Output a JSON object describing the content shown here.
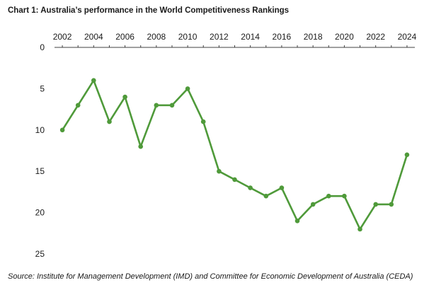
{
  "title": "Chart 1: Australia’s performance in the World Competitiveness Rankings",
  "source": "Source: Institute for Management Development (IMD) and Committee for Economic Development of Australia (CEDA)",
  "colors": {
    "series": "#4f9a3a",
    "axis": "#404040",
    "text": "#1a1a1a"
  },
  "chart_data": {
    "type": "line",
    "title": "Chart 1: Australia’s performance in the World Competitiveness Rankings",
    "xlabel": "",
    "ylabel": "",
    "x_axis_position": "top",
    "y_inverted": true,
    "xlim": [
      2001.5,
      2024.5
    ],
    "ylim": [
      0,
      25
    ],
    "x_ticks": [
      2002,
      2004,
      2006,
      2008,
      2010,
      2012,
      2014,
      2016,
      2018,
      2020,
      2022,
      2024
    ],
    "y_ticks": [
      0,
      5,
      10,
      15,
      20,
      25
    ],
    "grid": false,
    "legend": "none",
    "series": [
      {
        "x": [
          2002,
          2003,
          2004,
          2005,
          2006,
          2007,
          2008,
          2009,
          2010,
          2011,
          2012,
          2013,
          2014,
          2015,
          2016,
          2017,
          2018,
          2019,
          2020,
          2021,
          2022,
          2023,
          2024
        ],
        "values": [
          10,
          7,
          4,
          9,
          6,
          12,
          7,
          7,
          5,
          9,
          15,
          16,
          17,
          18,
          17,
          21,
          19,
          18,
          18,
          22,
          19,
          19,
          13
        ]
      }
    ]
  }
}
